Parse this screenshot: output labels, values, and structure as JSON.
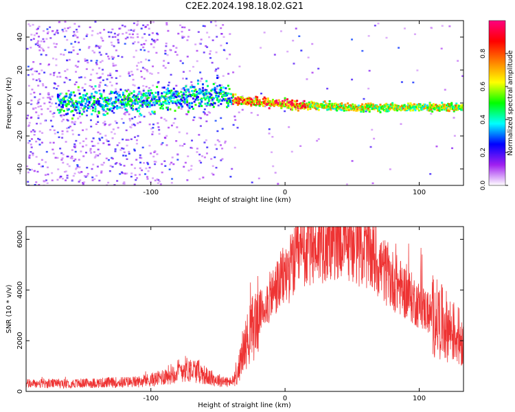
{
  "title": "C2E2.2024.198.18.02.G21",
  "chart_data": [
    {
      "type": "heatmap",
      "xlabel": "Height of straight line (km)",
      "ylabel": "Frequency (Hz)",
      "xlim": [
        -193,
        133
      ],
      "ylim": [
        -50,
        50
      ],
      "xticks": [
        -100,
        0,
        100
      ],
      "yticks": [
        -40,
        -20,
        0,
        20,
        40
      ],
      "colorbar": {
        "label": "Normalized spectral amplitude",
        "range": [
          0,
          1
        ],
        "ticks": [
          "0.0",
          "0.2",
          "0.4",
          "0.6",
          "0.8"
        ],
        "tick_values": [
          0.0,
          0.2,
          0.4,
          0.6,
          0.8
        ],
        "colormap": [
          "#ffffff",
          "#a020f0",
          "#0000ff",
          "#00ffff",
          "#00ff00",
          "#ffff00",
          "#ff8000",
          "#ff0000",
          "#ff0080"
        ]
      },
      "ridge": {
        "x": [
          -165,
          -140,
          -120,
          -100,
          -80,
          -60,
          -50,
          -40,
          -30,
          -20,
          -10,
          0,
          10,
          20,
          40,
          60,
          80,
          100,
          120,
          133
        ],
        "y": [
          0,
          1,
          2,
          2,
          4,
          5,
          6,
          3,
          2,
          1,
          0.5,
          0,
          -1,
          -1,
          -2,
          -2,
          -2,
          -2,
          -2,
          -2
        ]
      },
      "grid": false
    },
    {
      "type": "line",
      "xlabel": "Height of straight line (km)",
      "ylabel": "SNR (10 * v/v)",
      "xlim": [
        -193,
        133
      ],
      "ylim": [
        0,
        6500
      ],
      "xticks": [
        -100,
        0,
        100
      ],
      "yticks": [
        0,
        2000,
        4000,
        6000
      ],
      "color": "#ee3333",
      "envelope": {
        "x": [
          -193,
          -150,
          -110,
          -95,
          -85,
          -75,
          -65,
          -55,
          -40,
          -36,
          -30,
          -20,
          -10,
          0,
          10,
          20,
          30,
          40,
          50,
          60,
          70,
          80,
          90,
          100,
          110,
          120,
          133
        ],
        "y": [
          300,
          320,
          380,
          500,
          700,
          900,
          800,
          500,
          350,
          600,
          1800,
          3000,
          3800,
          4600,
          5300,
          5700,
          5950,
          6050,
          5900,
          5600,
          5000,
          4400,
          3900,
          3400,
          3000,
          2600,
          2000
        ]
      },
      "grid": false
    }
  ]
}
